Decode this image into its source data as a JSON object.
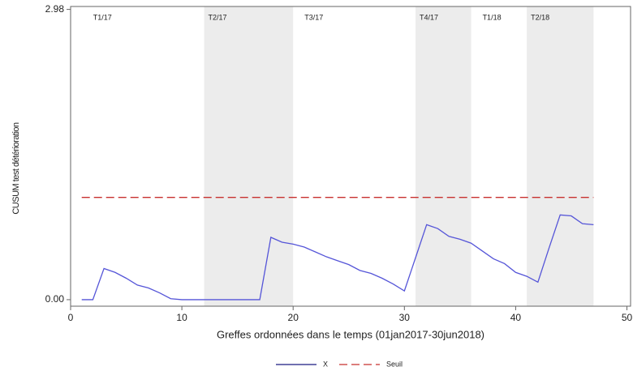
{
  "chart_data": {
    "type": "line",
    "xlabel": "Greffes ordonnées dans le temps (01jan2017-30jun2018)",
    "ylabel": "CUSUM test détérioration",
    "x": [
      1,
      2,
      3,
      4,
      5,
      6,
      7,
      8,
      9,
      10,
      11,
      12,
      13,
      14,
      15,
      16,
      17,
      18,
      19,
      20,
      21,
      22,
      23,
      24,
      25,
      26,
      27,
      28,
      29,
      30,
      31,
      32,
      33,
      34,
      35,
      36,
      37,
      38,
      39,
      40,
      41,
      42,
      43,
      44,
      45,
      46,
      47
    ],
    "series": [
      {
        "name": "X",
        "color": "#5555d8",
        "legend_color": "#1a1a80",
        "style": "solid",
        "values": [
          0,
          0,
          0.32,
          0.28,
          0.22,
          0.15,
          0.12,
          0.07,
          0.01,
          0,
          0,
          0,
          0,
          0,
          0,
          0,
          0,
          0.64,
          0.59,
          0.57,
          0.54,
          0.49,
          0.44,
          0.4,
          0.36,
          0.3,
          0.27,
          0.22,
          0.16,
          0.09,
          0.43,
          0.77,
          0.73,
          0.65,
          0.62,
          0.58,
          0.5,
          0.42,
          0.37,
          0.28,
          0.24,
          0.18,
          0.53,
          0.87,
          0.86,
          0.78,
          0.77
        ]
      },
      {
        "name": "Seuil",
        "color": "#c8302f",
        "style": "dashed",
        "values": [
          1.05,
          1.05,
          1.05,
          1.05,
          1.05,
          1.05,
          1.05,
          1.05,
          1.05,
          1.05,
          1.05,
          1.05,
          1.05,
          1.05,
          1.05,
          1.05,
          1.05,
          1.05,
          1.05,
          1.05,
          1.05,
          1.05,
          1.05,
          1.05,
          1.05,
          1.05,
          1.05,
          1.05,
          1.05,
          1.05,
          1.05,
          1.05,
          1.05,
          1.05,
          1.05,
          1.05,
          1.05,
          1.05,
          1.05,
          1.05,
          1.05,
          1.05,
          1.05,
          1.05,
          1.05,
          1.05,
          1.05
        ]
      }
    ],
    "periods": [
      {
        "name": "T1/17",
        "start": 1,
        "end": 12,
        "shaded": false
      },
      {
        "name": "T2/17",
        "start": 12,
        "end": 20,
        "shaded": true
      },
      {
        "name": "T3/17",
        "start": 20,
        "end": 31,
        "shaded": false
      },
      {
        "name": "T4/17",
        "start": 31,
        "end": 36,
        "shaded": true
      },
      {
        "name": "T1/18",
        "start": 36,
        "end": 41,
        "shaded": false
      },
      {
        "name": "T2/18",
        "start": 41,
        "end": 47,
        "shaded": true
      }
    ],
    "shade_color": "#ececec",
    "xlim": [
      0,
      50.4
    ],
    "xticks": [
      0,
      10,
      20,
      30,
      40,
      50
    ],
    "ylim": [
      -0.067,
      3.01
    ],
    "yticks": [
      {
        "value": 0,
        "label": "0.00"
      },
      {
        "value": 2.98,
        "label": "2.98"
      }
    ],
    "legend": "bottom"
  }
}
